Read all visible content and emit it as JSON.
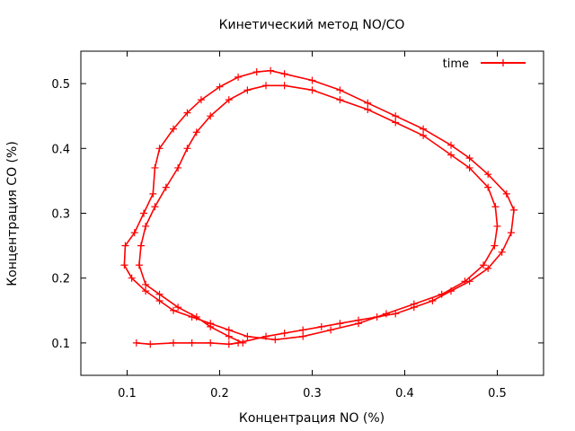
{
  "chart_data": {
    "type": "line",
    "title": "Кинетический метод NO/CO",
    "xlabel": "Концентрация NO (%)",
    "ylabel": "Концентрация CO (%)",
    "xlim": [
      0.05,
      0.55
    ],
    "ylim": [
      0.05,
      0.55
    ],
    "x_ticks": [
      "0.1",
      "0.2",
      "0.3",
      "0.4",
      "0.5"
    ],
    "y_ticks": [
      "0.1",
      "0.2",
      "0.3",
      "0.4",
      "0.5"
    ],
    "legend_position": "top-right",
    "grid": false,
    "series": [
      {
        "name": "time",
        "color": "#ff0000",
        "marker": "plus",
        "points": [
          [
            0.11,
            0.1
          ],
          [
            0.125,
            0.098
          ],
          [
            0.15,
            0.1
          ],
          [
            0.17,
            0.1
          ],
          [
            0.19,
            0.1
          ],
          [
            0.21,
            0.098
          ],
          [
            0.22,
            0.1
          ],
          [
            0.25,
            0.11
          ],
          [
            0.27,
            0.115
          ],
          [
            0.29,
            0.12
          ],
          [
            0.31,
            0.125
          ],
          [
            0.33,
            0.13
          ],
          [
            0.35,
            0.135
          ],
          [
            0.37,
            0.14
          ],
          [
            0.39,
            0.145
          ],
          [
            0.41,
            0.155
          ],
          [
            0.43,
            0.165
          ],
          [
            0.45,
            0.18
          ],
          [
            0.47,
            0.195
          ],
          [
            0.49,
            0.215
          ],
          [
            0.505,
            0.24
          ],
          [
            0.515,
            0.27
          ],
          [
            0.518,
            0.305
          ],
          [
            0.51,
            0.33
          ],
          [
            0.49,
            0.36
          ],
          [
            0.47,
            0.385
          ],
          [
            0.45,
            0.405
          ],
          [
            0.42,
            0.43
          ],
          [
            0.39,
            0.45
          ],
          [
            0.36,
            0.47
          ],
          [
            0.33,
            0.49
          ],
          [
            0.3,
            0.505
          ],
          [
            0.27,
            0.515
          ],
          [
            0.255,
            0.52
          ],
          [
            0.24,
            0.518
          ],
          [
            0.22,
            0.51
          ],
          [
            0.2,
            0.495
          ],
          [
            0.18,
            0.475
          ],
          [
            0.165,
            0.455
          ],
          [
            0.15,
            0.43
          ],
          [
            0.135,
            0.4
          ],
          [
            0.13,
            0.37
          ],
          [
            0.128,
            0.33
          ],
          [
            0.118,
            0.3
          ],
          [
            0.108,
            0.27
          ],
          [
            0.098,
            0.25
          ],
          [
            0.097,
            0.22
          ],
          [
            0.105,
            0.2
          ],
          [
            0.12,
            0.18
          ],
          [
            0.135,
            0.165
          ],
          [
            0.15,
            0.15
          ],
          [
            0.17,
            0.14
          ],
          [
            0.19,
            0.13
          ],
          [
            0.21,
            0.12
          ],
          [
            0.23,
            0.11
          ],
          [
            0.26,
            0.105
          ],
          [
            0.29,
            0.11
          ],
          [
            0.32,
            0.12
          ],
          [
            0.35,
            0.13
          ],
          [
            0.38,
            0.145
          ],
          [
            0.41,
            0.16
          ],
          [
            0.44,
            0.175
          ],
          [
            0.465,
            0.195
          ],
          [
            0.485,
            0.22
          ],
          [
            0.497,
            0.25
          ],
          [
            0.5,
            0.28
          ],
          [
            0.498,
            0.31
          ],
          [
            0.49,
            0.34
          ],
          [
            0.47,
            0.37
          ],
          [
            0.45,
            0.39
          ],
          [
            0.42,
            0.42
          ],
          [
            0.39,
            0.44
          ],
          [
            0.36,
            0.46
          ],
          [
            0.33,
            0.475
          ],
          [
            0.3,
            0.49
          ],
          [
            0.27,
            0.497
          ],
          [
            0.25,
            0.497
          ],
          [
            0.23,
            0.49
          ],
          [
            0.21,
            0.475
          ],
          [
            0.19,
            0.45
          ],
          [
            0.175,
            0.425
          ],
          [
            0.165,
            0.4
          ],
          [
            0.155,
            0.37
          ],
          [
            0.142,
            0.34
          ],
          [
            0.13,
            0.31
          ],
          [
            0.12,
            0.28
          ],
          [
            0.115,
            0.25
          ],
          [
            0.113,
            0.22
          ],
          [
            0.12,
            0.19
          ],
          [
            0.135,
            0.175
          ],
          [
            0.155,
            0.155
          ],
          [
            0.175,
            0.14
          ],
          [
            0.19,
            0.125
          ],
          [
            0.21,
            0.11
          ],
          [
            0.225,
            0.1
          ]
        ]
      }
    ]
  }
}
